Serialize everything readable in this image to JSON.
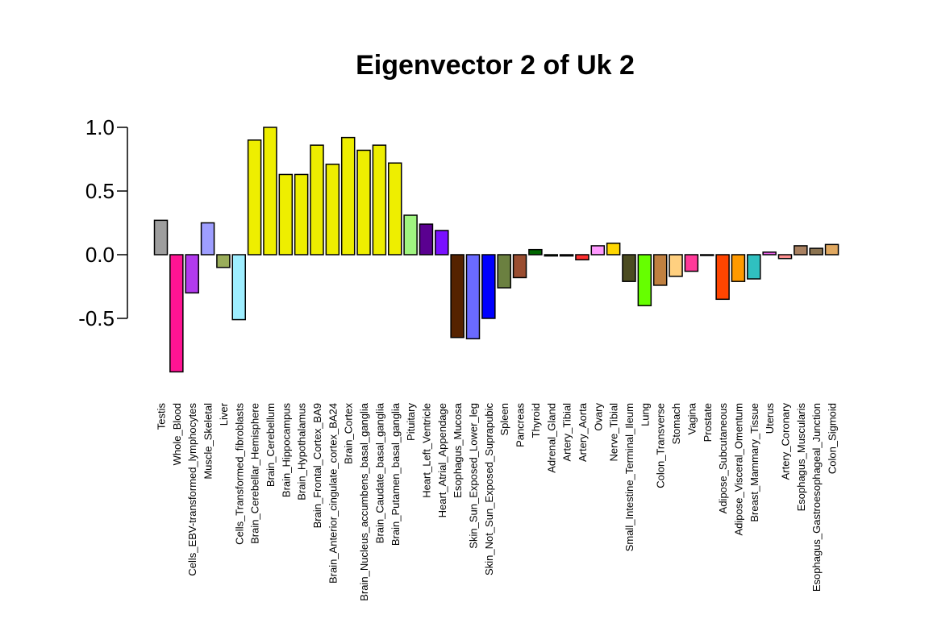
{
  "chart_data": {
    "type": "bar",
    "title": "Eigenvector 2 of Uk 2",
    "xlabel": "",
    "ylabel": "",
    "ylim": [
      -0.92,
      1.0
    ],
    "yticks": [
      -0.5,
      0.0,
      0.5,
      1.0
    ],
    "ytick_labels": [
      "-0.5",
      "0.0",
      "0.5",
      "1.0"
    ],
    "grid": false,
    "categories": [
      "Testis",
      "Whole_Blood",
      "Cells_EBV-transformed_lymphocytes",
      "Muscle_Skeletal",
      "Liver",
      "Cells_Transformed_fibroblasts",
      "Brain_Cerebellar_Hemisphere",
      "Brain_Cerebellum",
      "Brain_Hippocampus",
      "Brain_Hypothalamus",
      "Brain_Frontal_Cortex_BA9",
      "Brain_Anterior_cingulate_cortex_BA24",
      "Brain_Cortex",
      "Brain_Nucleus_accumbens_basal_ganglia",
      "Brain_Caudate_basal_ganglia",
      "Brain_Putamen_basal_ganglia",
      "Pituitary",
      "Heart_Left_Ventricle",
      "Heart_Atrial_Appendage",
      "Esophagus_Mucosa",
      "Skin_Sun_Exposed_Lower_leg",
      "Skin_Not_Sun_Exposed_Suprapubic",
      "Spleen",
      "Pancreas",
      "Thyroid",
      "Adrenal_Gland",
      "Artery_Tibial",
      "Artery_Aorta",
      "Ovary",
      "Nerve_Tibial",
      "Small_Intestine_Terminal_Ileum",
      "Lung",
      "Colon_Transverse",
      "Stomach",
      "Vagina",
      "Prostate",
      "Adipose_Subcutaneous",
      "Adipose_Visceral_Omentum",
      "Breast_Mammary_Tissue",
      "Uterus",
      "Artery_Coronary",
      "Esophagus_Muscularis",
      "Esophagus_Gastroesophageal_Junction",
      "Colon_Sigmoid"
    ],
    "values": [
      0.27,
      -0.92,
      -0.3,
      0.25,
      -0.1,
      -0.51,
      0.9,
      1.0,
      0.63,
      0.63,
      0.86,
      0.71,
      0.92,
      0.82,
      0.86,
      0.72,
      0.31,
      0.24,
      0.19,
      -0.65,
      -0.66,
      -0.5,
      -0.26,
      -0.18,
      0.04,
      -0.01,
      -0.01,
      -0.04,
      0.07,
      0.09,
      -0.21,
      -0.4,
      -0.24,
      -0.17,
      -0.13,
      0.0,
      -0.35,
      -0.21,
      -0.19,
      0.02,
      -0.03,
      0.07,
      0.05,
      0.08
    ],
    "colors": [
      "#9e9e9e",
      "#ff1493",
      "#b23aee",
      "#9e9eff",
      "#9aad5a",
      "#9eeeff",
      "#eeee00",
      "#eeee00",
      "#eeee00",
      "#eeee00",
      "#eeee00",
      "#eeee00",
      "#eeee00",
      "#eeee00",
      "#eeee00",
      "#eeee00",
      "#a0f580",
      "#5a0090",
      "#7a10ff",
      "#552200",
      "#6a6aff",
      "#0000ff",
      "#6b8040",
      "#9a4d30",
      "#006600",
      "#20bb20",
      "#7a7a7a",
      "#ff3030",
      "#ff99ff",
      "#ffd700",
      "#4b4b20",
      "#66ff00",
      "#c08040",
      "#ffd080",
      "#ff3a99",
      "#cccccc",
      "#ff4500",
      "#ff9a00",
      "#30c0c0",
      "#ee60ee",
      "#ff9090",
      "#a88060",
      "#8b7350",
      "#e0a860"
    ]
  }
}
